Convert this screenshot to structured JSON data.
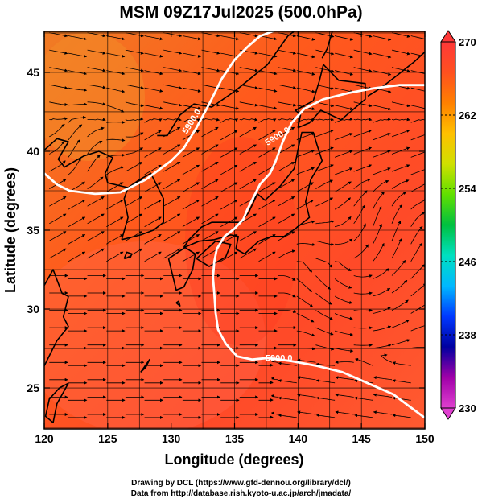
{
  "title": "MSM 09Z17Jul2025 (500.0hPa)",
  "axes": {
    "xlabel": "Longitude (degrees)",
    "ylabel": "Latitude  (degrees)",
    "x_ticks": [
      "120",
      "125",
      "130",
      "135",
      "140",
      "145",
      "150"
    ],
    "y_ticks": [
      "25",
      "30",
      "35",
      "40",
      "45"
    ]
  },
  "map_data": {
    "type": "heatmap",
    "variable": "temperature",
    "lon_range": [
      120,
      150
    ],
    "lat_range": [
      22.4,
      47.6
    ],
    "grid_lines": true,
    "coastlines": true,
    "streamlines": true,
    "contours": [
      {
        "label": "5900.0",
        "value": 5900,
        "lines": [
          [
            [
              120,
              38.6
            ],
            [
              121,
              37.9
            ],
            [
              122,
              37.5
            ],
            [
              124,
              37.3
            ],
            [
              126,
              37.4
            ],
            [
              128,
              38.2
            ],
            [
              130,
              39.4
            ],
            [
              131,
              40.2
            ],
            [
              132,
              41.5
            ],
            [
              133,
              43.0
            ],
            [
              134,
              44.6
            ],
            [
              135,
              45.8
            ],
            [
              136,
              46.6
            ],
            [
              137,
              47.3
            ],
            [
              138,
              47.6
            ],
            [
              139,
              47.9
            ]
          ],
          [
            [
              150,
              44.2
            ],
            [
              148,
              44.2
            ],
            [
              146,
              44.0
            ],
            [
              144,
              43.7
            ],
            [
              142,
              43.3
            ],
            [
              140.5,
              42.7
            ],
            [
              139.5,
              41.8
            ],
            [
              138.8,
              40.6
            ],
            [
              138.2,
              39.3
            ],
            [
              137.8,
              38.6
            ],
            [
              137,
              37.9
            ],
            [
              136.5,
              37.1
            ],
            [
              136,
              36.3
            ],
            [
              135.7,
              35.7
            ],
            [
              135,
              35.1
            ],
            [
              134.2,
              34.6
            ],
            [
              133.6,
              33.8
            ],
            [
              133.4,
              33.0
            ],
            [
              133.3,
              32.0
            ],
            [
              133.4,
              31.0
            ],
            [
              133.5,
              29.8
            ],
            [
              133.7,
              28.7
            ],
            [
              134.3,
              27.8
            ],
            [
              135.2,
              27.0
            ],
            [
              136.4,
              26.8
            ],
            [
              137.6,
              26.9
            ],
            [
              139.5,
              26.7
            ],
            [
              141.5,
              26.4
            ],
            [
              143.5,
              26.0
            ],
            [
              145.5,
              25.3
            ],
            [
              147.5,
              24.6
            ],
            [
              149,
              23.7
            ],
            [
              150,
              23.1
            ]
          ]
        ]
      }
    ]
  },
  "colorbar": {
    "min": 230,
    "max": 270,
    "tick_labels": [
      "270",
      "262",
      "254",
      "246",
      "238",
      "230"
    ],
    "stops": [
      "#e040d0",
      "#a000a8",
      "#0000a0",
      "#0038ff",
      "#00b8ff",
      "#00e0c0",
      "#00c040",
      "#60e000",
      "#d0e000",
      "#ffc000",
      "#ff8000",
      "#ff5020",
      "#ff3838"
    ]
  },
  "credits": [
    "Drawing by DCL (https://www.gfd-dennou.org/library/dcl/)",
    "Data from http://database.rish.kyoto-u.ac.jp/arch/jmadata/"
  ]
}
